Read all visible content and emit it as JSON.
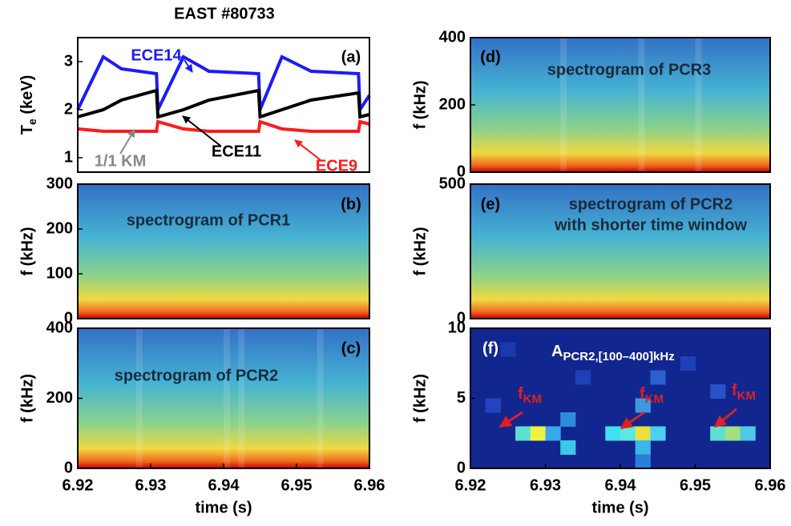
{
  "chart_data": [
    {
      "type": "line",
      "title": "EAST #80733",
      "panel_label": "(a)",
      "ylabel": {
        "main": "T",
        "sub": "e",
        "unit": " (keV)"
      },
      "x": [
        6.92,
        6.9235,
        6.926,
        6.9308,
        6.931,
        6.9345,
        6.938,
        6.9448,
        6.945,
        6.948,
        6.952,
        6.9585,
        6.9587,
        6.96
      ],
      "series": [
        {
          "name": "ECE14",
          "color": "#1a1aff",
          "values": [
            2.0,
            3.1,
            2.85,
            2.75,
            2.0,
            3.1,
            2.8,
            2.75,
            2.0,
            3.1,
            2.8,
            2.75,
            2.0,
            2.3
          ]
        },
        {
          "name": "ECE11",
          "color": "#000000",
          "values": [
            1.85,
            2.0,
            2.2,
            2.4,
            1.85,
            2.0,
            2.2,
            2.4,
            1.85,
            2.0,
            2.2,
            2.35,
            1.85,
            1.9
          ]
        },
        {
          "name": "ECE9",
          "color": "#ff1a1a",
          "values": [
            1.6,
            1.55,
            1.55,
            1.55,
            1.75,
            1.6,
            1.55,
            1.55,
            1.75,
            1.6,
            1.55,
            1.55,
            1.75,
            1.7
          ]
        }
      ],
      "annotation": "1/1 KM",
      "xlim": [
        6.92,
        6.96
      ],
      "ylim": [
        0.7,
        3.5
      ],
      "yticks": [
        1,
        2,
        3
      ]
    },
    {
      "type": "spectrogram",
      "panel_label": "(b)",
      "ylabel": "f (kHz)",
      "annotation": "spectrogram of PCR1",
      "ylim": [
        0,
        300
      ],
      "yticks": [
        0,
        100,
        200,
        300
      ]
    },
    {
      "type": "spectrogram",
      "panel_label": "(c)",
      "ylabel": "f (kHz)",
      "annotation": "spectrogram of PCR2",
      "ylim": [
        0,
        400
      ],
      "yticks": [
        0,
        200,
        400
      ],
      "xlim": [
        6.92,
        6.96
      ],
      "xticks": [
        6.92,
        6.93,
        6.94,
        6.95,
        6.96
      ],
      "xlabel": "time (s)"
    },
    {
      "type": "spectrogram",
      "panel_label": "(d)",
      "ylabel": "f (kHz)",
      "annotation": "spectrogram of PCR3",
      "ylim": [
        0,
        400
      ],
      "yticks": [
        0,
        200,
        400
      ]
    },
    {
      "type": "spectrogram",
      "panel_label": "(e)",
      "ylabel": "f (kHz)",
      "annotation": [
        "spectrogram of PCR2",
        "with shorter time window"
      ],
      "ylim": [
        0,
        500
      ],
      "yticks": [
        0,
        500
      ]
    },
    {
      "type": "heatmap",
      "panel_label": "(f)",
      "ylabel": "f (kHz)",
      "annotation": {
        "main": "A",
        "sub": "PCR2,[100–400]kHz"
      },
      "markers": [
        {
          "main": "f",
          "sub": "KM"
        },
        {
          "main": "f",
          "sub": "KM"
        },
        {
          "main": "f",
          "sub": "KM"
        }
      ],
      "ylim": [
        0,
        10
      ],
      "yticks": [
        0,
        5,
        10
      ],
      "xlim": [
        6.92,
        6.96
      ],
      "xticks": [
        6.92,
        6.93,
        6.94,
        6.95,
        6.96
      ],
      "xlabel": "time (s)"
    }
  ]
}
